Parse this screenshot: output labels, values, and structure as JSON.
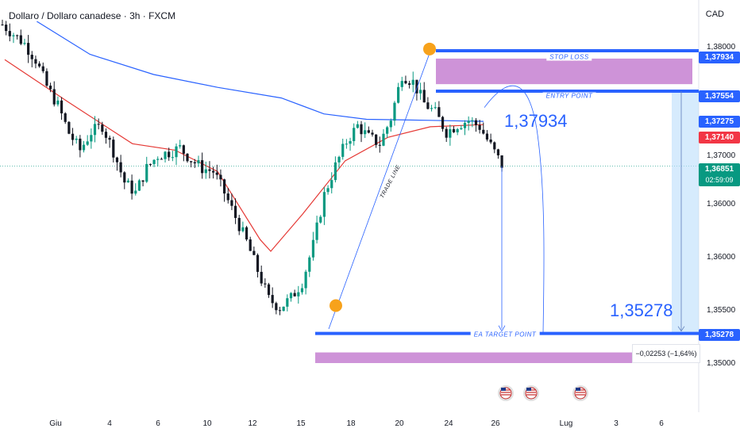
{
  "header": {
    "title": "Dollaro / Dollaro canadese · 3h · FXCM",
    "currency": "CAD"
  },
  "y_ticks": [
    "1,35000",
    "1,35500",
    "1,36000",
    "1,36500",
    "1,37000",
    "1,37500",
    "1,38000"
  ],
  "x_ticks": [
    "Giu",
    "4",
    "6",
    "10",
    "12",
    "15",
    "18",
    "20",
    "24",
    "26",
    "Lug",
    "3",
    "6"
  ],
  "price_labels": {
    "stop_loss": "1,37934",
    "entry": "1,37554",
    "level_a": "1,37275",
    "level_b": "1,37140",
    "current": "1,36851",
    "countdown": "02:59:09",
    "target": "1,35278"
  },
  "annotations": {
    "stop_loss": "STOP LOSS",
    "entry": "ENTRY POINT",
    "target": "EA TARGET POINT",
    "trade_line": "TRADE LINE",
    "big_upper": "1,37934",
    "big_lower": "1,35278",
    "measure": "−0,02253 (−1,64%)"
  },
  "colors": {
    "candle_up": "#089981",
    "candle_down": "#131722",
    "ma_red": "#e53935",
    "ma_blue": "#2962ff",
    "zone": "#ce93d8",
    "line_blue": "#2962ff",
    "pill_blue": "#2962ff",
    "pill_red": "#f23645",
    "pill_green": "#089981",
    "marker": "#f7a21b",
    "flag": "#e0e0e0"
  },
  "icons": [
    "us-flag-icon",
    "us-flag-icon",
    "us-flag-icon"
  ],
  "chart_data": {
    "type": "candlestick",
    "title": "Dollaro / Dollaro canadese · 3h · FXCM",
    "y_unit": "CAD",
    "ylim": [
      1.3493,
      1.3837
    ],
    "close_path": [
      [
        0,
        1.3818
      ],
      [
        2,
        1.38
      ],
      [
        3,
        1.3785
      ],
      [
        4,
        1.376
      ],
      [
        5,
        1.3742
      ],
      [
        6,
        1.3716
      ],
      [
        7,
        1.37
      ],
      [
        8,
        1.3717
      ],
      [
        9,
        1.3723
      ],
      [
        10,
        1.3699
      ],
      [
        11,
        1.367
      ],
      [
        12,
        1.366
      ],
      [
        13,
        1.3683
      ],
      [
        14,
        1.3695
      ],
      [
        15,
        1.3698
      ],
      [
        16,
        1.3702
      ],
      [
        17,
        1.3691
      ],
      [
        18,
        1.3683
      ],
      [
        19,
        1.368
      ],
      [
        20,
        1.366
      ],
      [
        21,
        1.3637
      ],
      [
        22,
        1.3614
      ],
      [
        23,
        1.3587
      ],
      [
        24,
        1.356
      ],
      [
        25,
        1.3552
      ],
      [
        26,
        1.3561
      ],
      [
        27,
        1.3576
      ],
      [
        28,
        1.3611
      ],
      [
        29,
        1.3658
      ],
      [
        30,
        1.3685
      ],
      [
        31,
        1.3708
      ],
      [
        32,
        1.3723
      ],
      [
        33,
        1.3712
      ],
      [
        34,
        1.3706
      ],
      [
        35,
        1.373
      ],
      [
        36,
        1.3771
      ],
      [
        37,
        1.3764
      ],
      [
        38,
        1.3744
      ],
      [
        39,
        1.3735
      ],
      [
        40,
        1.3717
      ],
      [
        41,
        1.3724
      ],
      [
        42,
        1.3728
      ],
      [
        43,
        1.3722
      ],
      [
        44,
        1.3704
      ],
      [
        45,
        1.3686
      ]
    ],
    "moving_averages": [
      {
        "color": "red",
        "values": [
          [
            0,
            1.3785
          ],
          [
            6,
            1.3745
          ],
          [
            12,
            1.3706
          ],
          [
            16,
            1.37
          ],
          [
            20,
            1.368
          ],
          [
            24,
            1.3616
          ],
          [
            25,
            1.3605
          ],
          [
            28,
            1.364
          ],
          [
            32,
            1.369
          ],
          [
            36,
            1.3712
          ],
          [
            40,
            1.3722
          ],
          [
            45,
            1.3724
          ]
        ]
      },
      {
        "color": "blue",
        "values": [
          [
            3,
            1.3821
          ],
          [
            8,
            1.379
          ],
          [
            14,
            1.3771
          ],
          [
            20,
            1.3759
          ],
          [
            26,
            1.3749
          ],
          [
            30,
            1.3734
          ],
          [
            34,
            1.3729
          ],
          [
            40,
            1.3728
          ],
          [
            45,
            1.3727
          ]
        ]
      }
    ],
    "levels": {
      "stop_loss": 1.37934,
      "entry": 1.37554,
      "level_a": 1.37275,
      "level_b": 1.3714,
      "current": 1.36851,
      "target": 1.35278
    },
    "zones": [
      [
        1.3762,
        1.3786
      ],
      [
        1.35,
        1.351
      ]
    ],
    "measure": {
      "change": -0.02253,
      "percent": -1.64
    },
    "markers": [
      [
        25,
        1.3554
      ],
      [
        37,
        1.3795
      ]
    ],
    "trend_line": [
      [
        25,
        1.3532
      ],
      [
        37,
        1.3795
      ]
    ],
    "x_ticks": [
      "Giu",
      "4",
      "6",
      "10",
      "12",
      "15",
      "18",
      "20",
      "24",
      "26",
      "Lug",
      "3",
      "6"
    ]
  }
}
